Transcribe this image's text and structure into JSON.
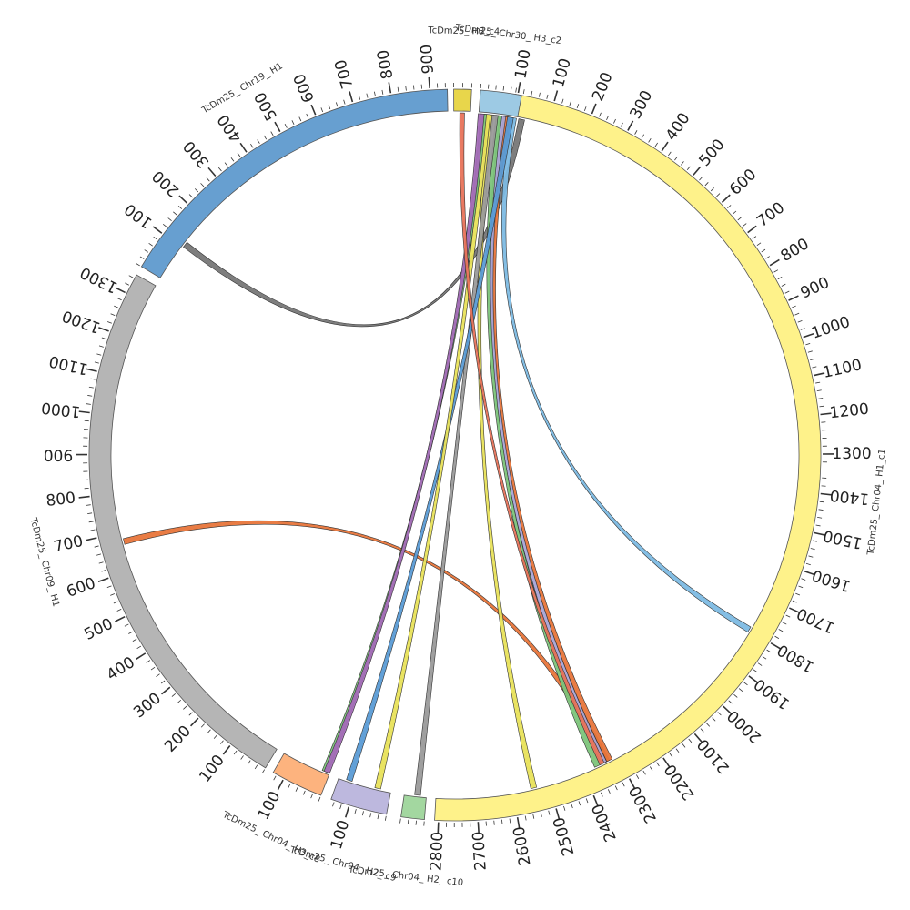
{
  "segments": [
    {
      "id": "chr04_h1_c1",
      "label": "TcDm25_ Chr04_ H1_c1",
      "color": "#FEF28A",
      "ticks": {
        "major": 100,
        "labels": [
          "100",
          "200",
          "300",
          "400",
          "500",
          "600",
          "700",
          "800",
          "900",
          "1000",
          "1100",
          "1200",
          "1300",
          "1400",
          "1500",
          "1600",
          "1700",
          "1800",
          "1900",
          "2000",
          "2100",
          "2200",
          "2300",
          "2400",
          "2500",
          "2600",
          "2700",
          "2800"
        ]
      }
    },
    {
      "id": "chr04_h2_c10",
      "label": "TcDm25_ Chr04_ H2_ c10",
      "color": "#A3D7A0",
      "ticks": {
        "major": 100,
        "labels": []
      }
    },
    {
      "id": "chr04_h2_c9",
      "label": "TcDm25_ Chr04_ H2_ c9",
      "color": "#BDB8DE",
      "ticks": {
        "major": 100,
        "labels": [
          "100"
        ]
      }
    },
    {
      "id": "chr04_h3_c8",
      "label": "TcDm25_ Chr04_ H3_c8",
      "color": "#FDB37E",
      "ticks": {
        "major": 100,
        "labels": [
          "100"
        ]
      }
    },
    {
      "id": "chr09_h1",
      "label": "TcDm25_ Chr09_ H1",
      "color": "#B5B5B5",
      "ticks": {
        "major": 100,
        "labels": [
          "100",
          "200",
          "300",
          "400",
          "500",
          "600",
          "700",
          "800",
          "900",
          "1000",
          "1100",
          "1200",
          "1300"
        ]
      }
    },
    {
      "id": "chr19_h1",
      "label": "TcDm25_ Chr19_ H1",
      "color": "#679FD0",
      "ticks": {
        "major": 100,
        "labels": [
          "100",
          "200",
          "300",
          "400",
          "500",
          "600",
          "700",
          "800",
          "900"
        ]
      }
    },
    {
      "id": "chr30_h3_c4",
      "label": "TcDm25_ H3_c4",
      "color": "#E8D64B",
      "ticks": {
        "major": 100,
        "labels": []
      }
    },
    {
      "id": "chr30_h3_c2",
      "label": "TcDm25_ Chr30_ H3_c2",
      "color": "#9DCAE4",
      "ticks": {
        "major": 100,
        "labels": [
          "100"
        ]
      }
    }
  ],
  "links": [
    {
      "from": "chr19_h1",
      "to": "chr04_h1_c1",
      "color": "#777777"
    },
    {
      "from": "chr09_h1",
      "to": "chr04_h1_c1",
      "color": "#E8753A"
    },
    {
      "from": "chr30_h3_c2",
      "to": "chr04_h1_c1",
      "color": "#7DBBE3"
    },
    {
      "from": "chr30_h3_c2",
      "to": "chr04_h1_c1",
      "color": "#E8753A"
    },
    {
      "from": "chr30_h3_c2",
      "to": "chr04_h1_c1",
      "color": "#A9A4D6"
    },
    {
      "from": "chr30_h3_c2",
      "to": "chr04_h1_c1",
      "color": "#7CC47A"
    },
    {
      "from": "chr30_h3_c2",
      "to": "chr04_h1_c1",
      "color": "#E8E25A"
    },
    {
      "from": "chr30_h3_c2",
      "to": "chr04_h2_c10",
      "color": "#9A9A9A"
    },
    {
      "from": "chr30_h3_c2",
      "to": "chr04_h2_c9",
      "color": "#5A9BD5"
    },
    {
      "from": "chr30_h3_c2",
      "to": "chr04_h2_c9",
      "color": "#E8E25A"
    },
    {
      "from": "chr30_h3_c2",
      "to": "chr04_h3_c8",
      "color": "#7CC47A"
    },
    {
      "from": "chr30_h3_c2",
      "to": "chr04_h3_c8",
      "color": "#A46CB8"
    },
    {
      "from": "chr30_h3_c4",
      "to": "chr04_h1_c1",
      "color": "#E8735A"
    }
  ]
}
